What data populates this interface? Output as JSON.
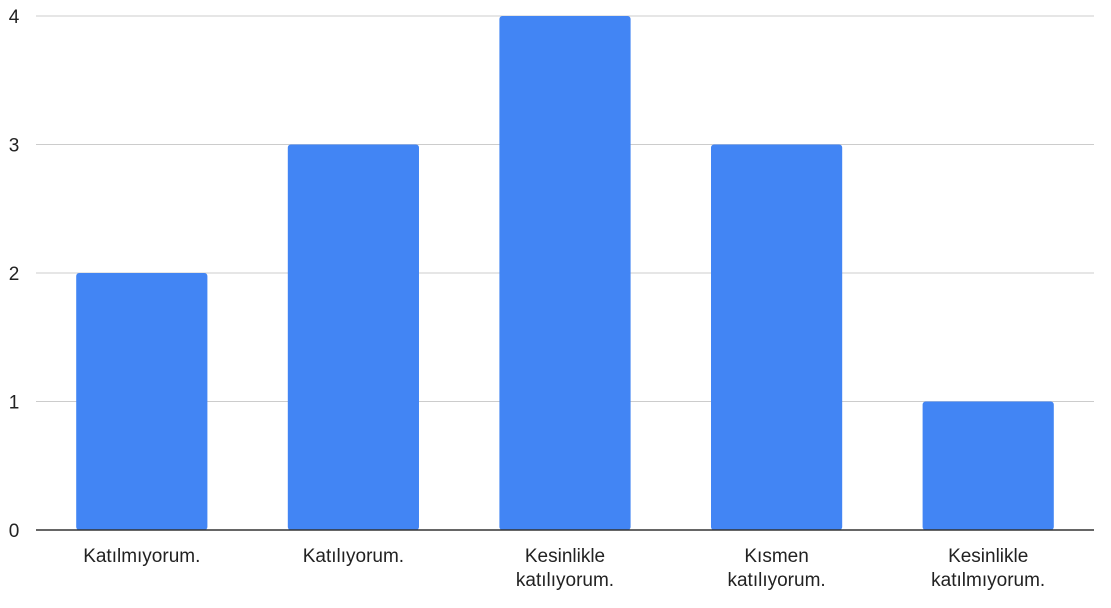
{
  "chart_data": {
    "type": "bar",
    "title": "",
    "xlabel": "",
    "ylabel": "",
    "categories": [
      [
        "Katılmıyorum."
      ],
      [
        "Katılıyorum."
      ],
      [
        "Kesinlikle",
        "katılıyorum."
      ],
      [
        "Kısmen",
        "katılıyorum."
      ],
      [
        "Kesinlikle",
        "katılmıyorum."
      ]
    ],
    "values": [
      2,
      3,
      4,
      3,
      1
    ],
    "ylim": [
      0,
      4
    ],
    "yticks": [
      0,
      1,
      2,
      3,
      4
    ],
    "grid": true,
    "legend": "none",
    "colors": {
      "bar": "#4285f4",
      "grid": "#cccccc",
      "axis": "#333333",
      "text": "#222222"
    }
  }
}
